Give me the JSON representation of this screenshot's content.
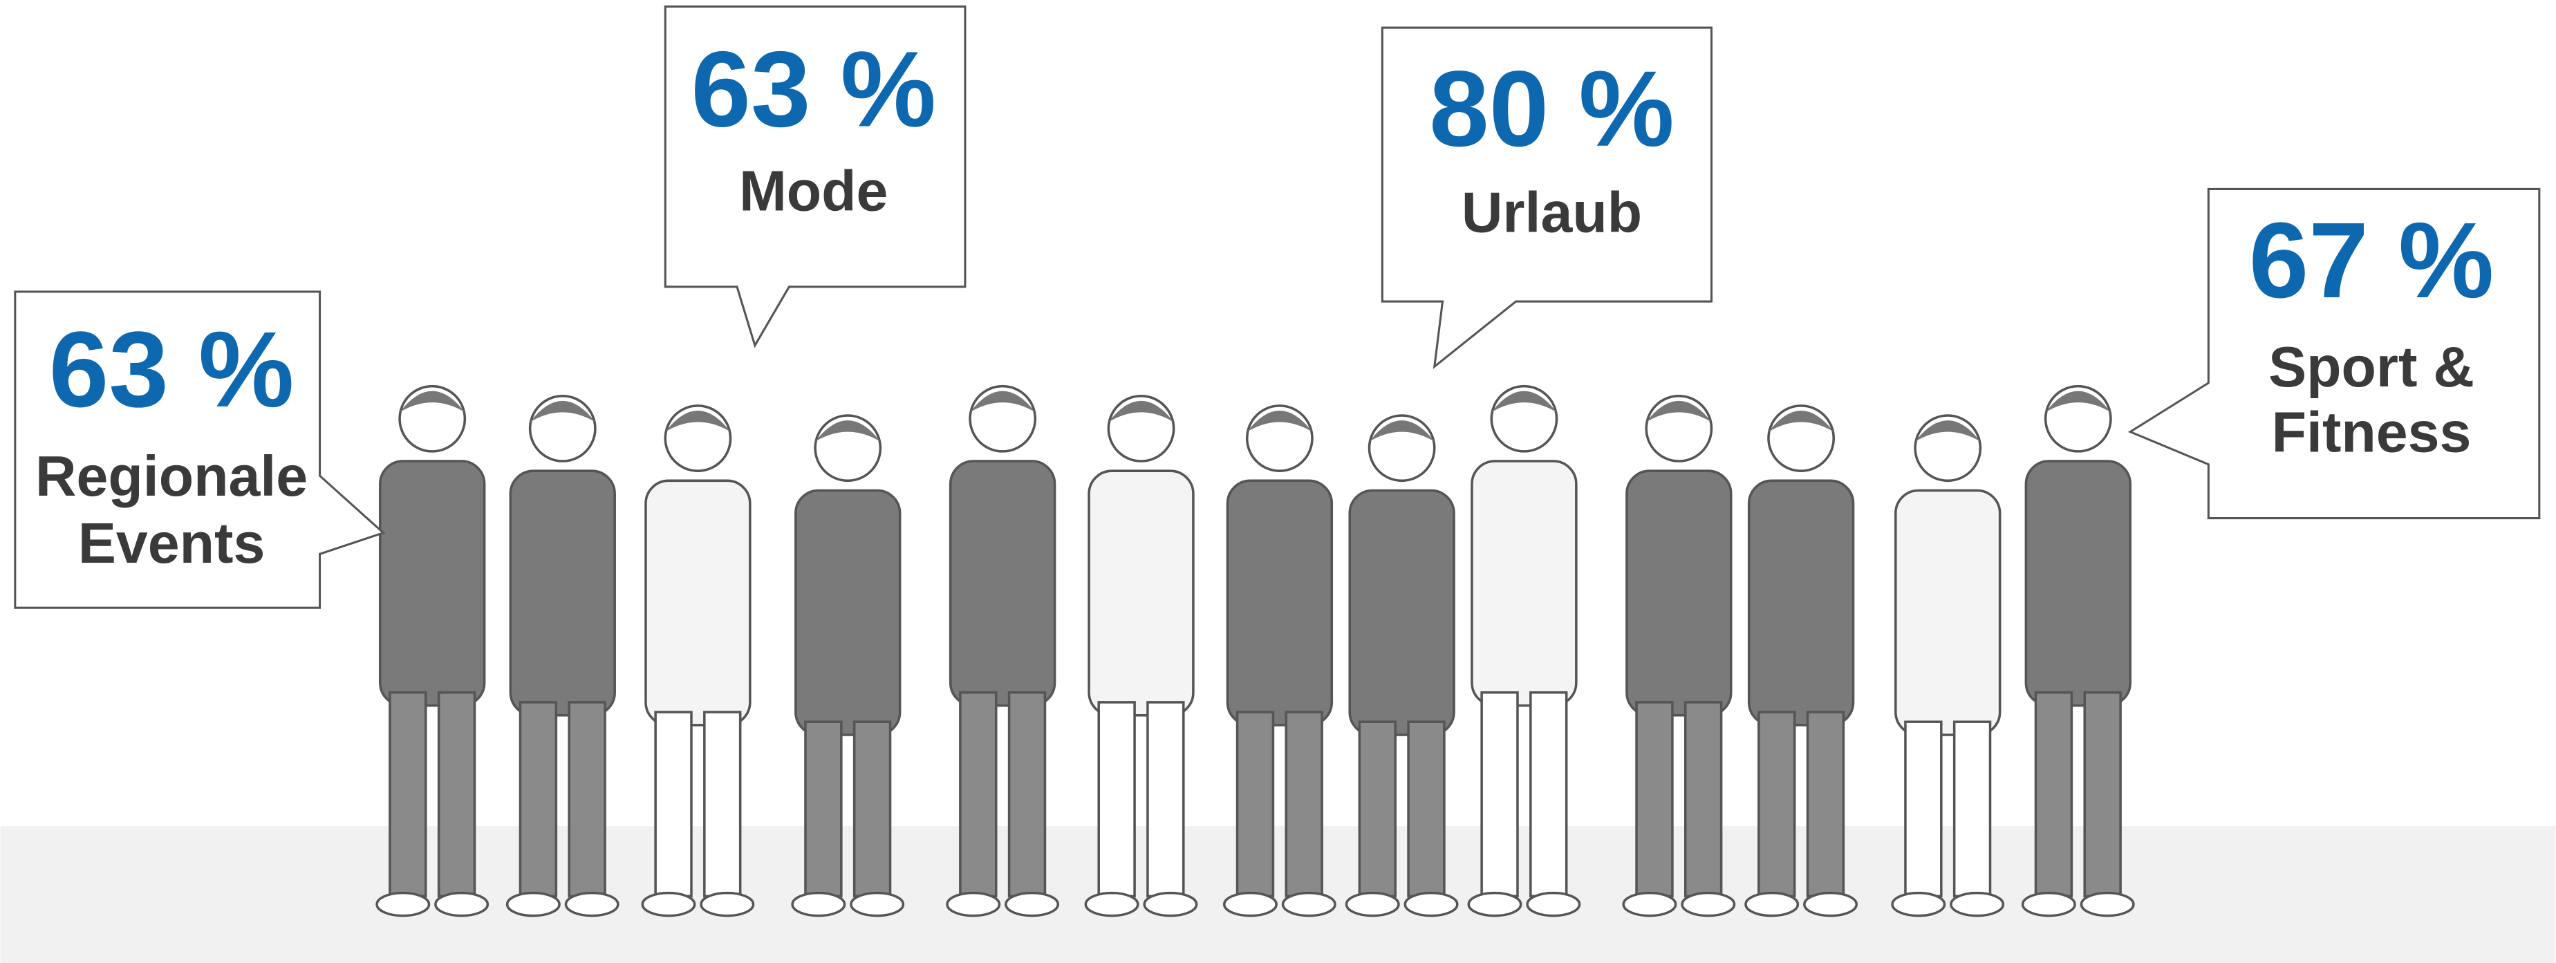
{
  "callouts": [
    {
      "value": "63 %",
      "label_lines": [
        "Regionale",
        "Events"
      ]
    },
    {
      "value": "63 %",
      "label_lines": [
        "Mode"
      ]
    },
    {
      "value": "80 %",
      "label_lines": [
        "Urlaub"
      ]
    },
    {
      "value": "67 %",
      "label_lines": [
        "Sport &",
        "Fitness"
      ]
    }
  ]
}
